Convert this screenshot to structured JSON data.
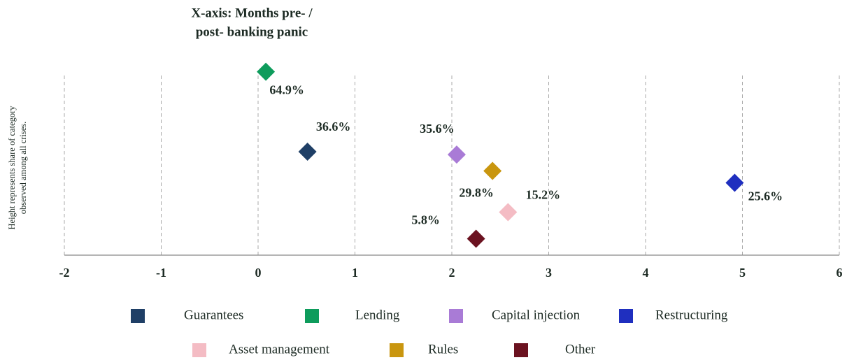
{
  "chart_data": {
    "type": "scatter",
    "title": [
      "X-axis: Months pre- /",
      "post- banking panic"
    ],
    "y_label": [
      "Height represents share of category",
      "observed among all crises."
    ],
    "xlim": [
      -2,
      6
    ],
    "xticks": [
      -2,
      -1,
      0,
      1,
      2,
      3,
      4,
      5,
      6
    ],
    "ylim": [
      0,
      70
    ],
    "grid": true,
    "series": [
      {
        "name": "Guarantees",
        "color": "#1f3f66",
        "x": [
          0.51
        ],
        "values": [
          36.6
        ],
        "value_labels": [
          "36.6%"
        ]
      },
      {
        "name": "Lending",
        "color": "#0e9c5c",
        "x": [
          0.08
        ],
        "values": [
          64.9
        ],
        "value_labels": [
          "64.9%"
        ]
      },
      {
        "name": "Capital injection",
        "color": "#a97bd6",
        "x": [
          2.05
        ],
        "values": [
          35.6
        ],
        "value_labels": [
          "35.6%"
        ]
      },
      {
        "name": "Restructuring",
        "color": "#1f2fbf",
        "x": [
          4.92
        ],
        "values": [
          25.6
        ],
        "value_labels": [
          "25.6%"
        ]
      },
      {
        "name": "Asset management",
        "color": "#f4bcc4",
        "x": [
          2.58
        ],
        "values": [
          15.2
        ],
        "value_labels": [
          "15.2%"
        ]
      },
      {
        "name": "Rules",
        "color": "#c9960f",
        "x": [
          2.42
        ],
        "values": [
          29.8
        ],
        "value_labels": [
          "29.8%"
        ]
      },
      {
        "name": "Other",
        "color": "#6b1220",
        "x": [
          2.25
        ],
        "values": [
          5.8
        ],
        "value_labels": [
          "5.8%"
        ]
      }
    ]
  }
}
